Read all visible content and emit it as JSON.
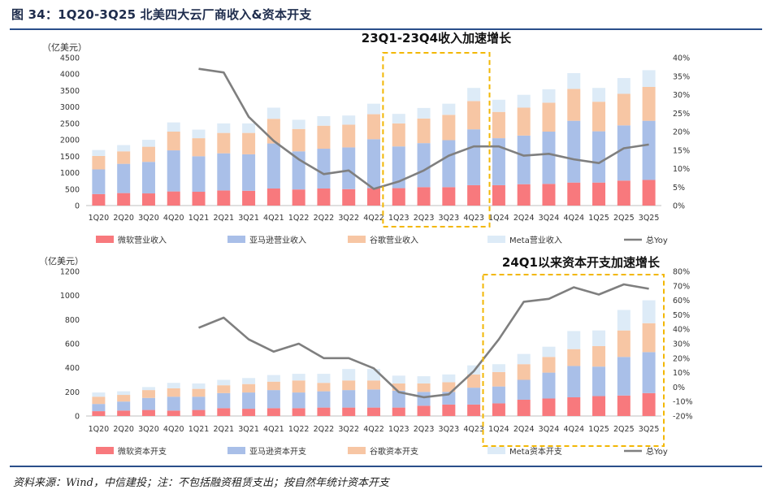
{
  "figure": {
    "title": "图 34：1Q20-3Q25 北美四大云厂商收入&资本开支",
    "source": "资料来源：Wind，中信建投；注：不包括融资租赁支出；按自然年统计资本开支"
  },
  "colors": {
    "microsoft": "#f8797d",
    "amazon": "#a9bfe8",
    "google": "#f7c6a4",
    "meta": "#ddebf7",
    "yoy": "#7f7f7f",
    "highlight": "#f2b705",
    "rule": "#2a4f8a"
  },
  "chart_data": [
    {
      "type": "bar",
      "stacked": true,
      "unit_label": "（亿美元）",
      "annotation": "23Q1-23Q4收入加速增长",
      "highlight_range": [
        "1Q23",
        "4Q23"
      ],
      "categories": [
        "1Q20",
        "2Q20",
        "3Q20",
        "4Q20",
        "1Q21",
        "2Q21",
        "3Q21",
        "4Q21",
        "1Q22",
        "2Q22",
        "3Q22",
        "4Q22",
        "1Q23",
        "2Q23",
        "3Q23",
        "4Q23",
        "1Q24",
        "2Q24",
        "3Q24",
        "4Q24",
        "1Q25",
        "2Q25",
        "3Q25"
      ],
      "ylim": [
        0,
        4500
      ],
      "yticks": [
        0,
        500,
        1000,
        1500,
        2000,
        2500,
        3000,
        3500,
        4000,
        4500
      ],
      "y2lim": [
        0,
        40
      ],
      "y2ticks": [
        "0%",
        "5%",
        "10%",
        "15%",
        "20%",
        "25%",
        "30%",
        "35%",
        "40%"
      ],
      "legend_position": "bottom",
      "series": [
        {
          "name": "微软营业收入",
          "values": [
            350,
            380,
            370,
            430,
            420,
            460,
            450,
            520,
            490,
            520,
            500,
            530,
            530,
            560,
            560,
            620,
            620,
            650,
            660,
            700,
            700,
            760,
            780
          ]
        },
        {
          "name": "亚马逊营业收入",
          "values": [
            750,
            890,
            960,
            1250,
            1080,
            1130,
            1110,
            1370,
            1160,
            1210,
            1270,
            1490,
            1270,
            1340,
            1430,
            1700,
            1430,
            1480,
            1590,
            1880,
            1560,
            1680,
            1800
          ]
        },
        {
          "name": "谷歌营业收入",
          "values": [
            410,
            380,
            460,
            570,
            550,
            620,
            650,
            750,
            680,
            700,
            690,
            760,
            700,
            750,
            770,
            860,
            800,
            850,
            880,
            970,
            900,
            960,
            1030
          ]
        },
        {
          "name": "Meta营业收入",
          "values": [
            180,
            190,
            210,
            280,
            260,
            290,
            290,
            340,
            280,
            290,
            280,
            320,
            290,
            320,
            340,
            400,
            370,
            390,
            410,
            480,
            420,
            480,
            510
          ]
        },
        {
          "name": "总Yoy",
          "type": "line",
          "values": [
            null,
            null,
            null,
            null,
            37,
            36,
            24,
            17.5,
            12.5,
            8.5,
            9.5,
            4.5,
            6.5,
            9.5,
            13.5,
            16,
            16,
            13.5,
            14,
            12.5,
            11.5,
            15.5,
            16.5
          ]
        }
      ]
    },
    {
      "type": "bar",
      "stacked": true,
      "unit_label": "（亿美元）",
      "annotation": "24Q1以来资本开支加速增长",
      "highlight_range": [
        "1Q24",
        "3Q25"
      ],
      "categories": [
        "1Q20",
        "2Q20",
        "3Q20",
        "4Q20",
        "1Q21",
        "2Q21",
        "3Q21",
        "4Q21",
        "1Q22",
        "2Q22",
        "3Q22",
        "4Q22",
        "1Q23",
        "2Q23",
        "3Q23",
        "4Q23",
        "1Q24",
        "2Q24",
        "3Q24",
        "4Q24",
        "1Q25",
        "2Q25",
        "3Q25"
      ],
      "ylim": [
        0,
        1200
      ],
      "yticks": [
        0,
        200,
        400,
        600,
        800,
        1000,
        1200
      ],
      "y2lim": [
        -20,
        80
      ],
      "y2ticks": [
        "-20%",
        "-10%",
        "0%",
        "10%",
        "20%",
        "30%",
        "40%",
        "50%",
        "60%",
        "70%",
        "80%"
      ],
      "legend_position": "bottom",
      "series": [
        {
          "name": "微软资本开支",
          "values": [
            40,
            45,
            50,
            45,
            50,
            65,
            60,
            65,
            65,
            70,
            70,
            70,
            70,
            85,
            95,
            95,
            105,
            135,
            145,
            155,
            165,
            170,
            190
          ]
        },
        {
          "name": "亚马逊资本开支",
          "values": [
            60,
            75,
            100,
            115,
            110,
            125,
            135,
            150,
            130,
            135,
            145,
            150,
            140,
            115,
            105,
            140,
            140,
            165,
            215,
            260,
            245,
            320,
            340
          ]
        },
        {
          "name": "谷歌资本开支",
          "values": [
            60,
            55,
            65,
            70,
            65,
            65,
            70,
            70,
            100,
            70,
            80,
            75,
            60,
            70,
            80,
            110,
            120,
            130,
            130,
            140,
            170,
            220,
            240
          ]
        },
        {
          "name": "Meta资本开支",
          "values": [
            35,
            30,
            25,
            45,
            45,
            45,
            50,
            55,
            55,
            75,
            95,
            95,
            65,
            60,
            65,
            75,
            65,
            85,
            85,
            150,
            130,
            170,
            190
          ]
        },
        {
          "name": "总Yoy",
          "type": "line",
          "values": [
            null,
            null,
            null,
            null,
            41,
            48,
            33,
            24.5,
            30,
            20,
            20,
            13,
            -3.5,
            -7,
            -5,
            11,
            33,
            59,
            61,
            69,
            64,
            71,
            68
          ]
        }
      ]
    }
  ]
}
